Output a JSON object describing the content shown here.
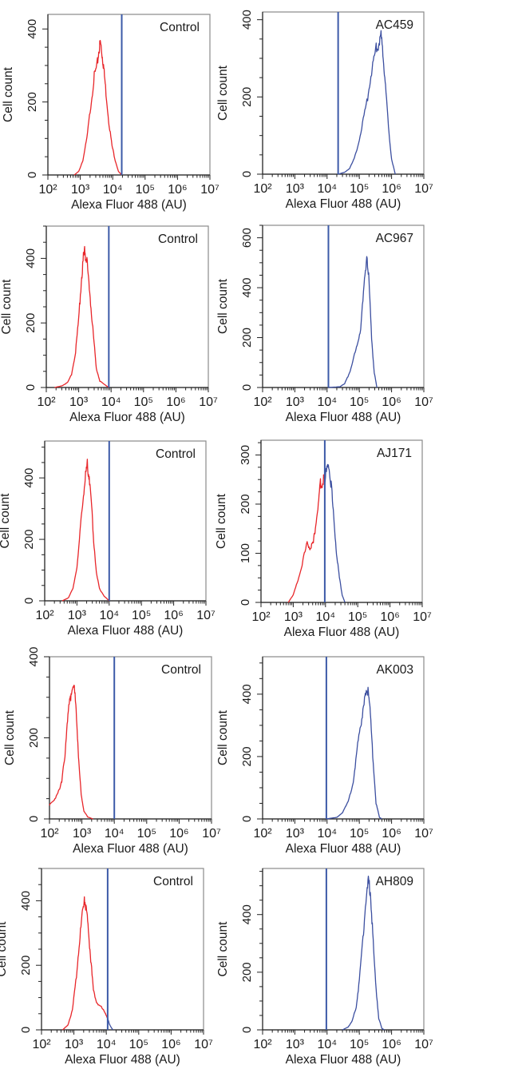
{
  "figure": {
    "description": "Flow cytometry histograms: isotype control vs. antibody staining, Alexa Fluor 488"
  },
  "colors": {
    "negative_population": "#e8262a",
    "positive_population": "#3c4fa0",
    "gate_line": "#3c5aa8",
    "frame": "#8a8a8a"
  },
  "chart_data": [
    {
      "type": "line",
      "title": "Control",
      "xlabel": "Alexa Fluor 488 (AU)",
      "ylabel": "Cell count",
      "xscale": "log",
      "xlim": [
        100,
        10000000
      ],
      "ylim": [
        0,
        440
      ],
      "x_ticks": [
        "10^2",
        "10^3",
        "10^4",
        "10^5",
        "10^6",
        "10^7"
      ],
      "y_ticks": [
        0,
        200,
        400
      ],
      "y_minor_step": 50,
      "gate": 19000,
      "series": [
        {
          "name": "below-gate",
          "color": "red",
          "peak_x": 4200,
          "peak_y": 362,
          "start_x": 650,
          "end_x": 19000,
          "points": [
            [
              650,
              0
            ],
            [
              900,
              10
            ],
            [
              1200,
              40
            ],
            [
              1600,
              100
            ],
            [
              2100,
              190
            ],
            [
              2700,
              270
            ],
            [
              3300,
              300
            ],
            [
              3800,
              345
            ],
            [
              4200,
              362
            ],
            [
              4700,
              330
            ],
            [
              5200,
              300
            ],
            [
              6000,
              240
            ],
            [
              7500,
              150
            ],
            [
              9500,
              80
            ],
            [
              12000,
              40
            ],
            [
              15000,
              10
            ],
            [
              19000,
              0
            ]
          ]
        }
      ]
    },
    {
      "type": "line",
      "title": "AC459",
      "xlabel": "Alexa Fluor 488 (AU)",
      "ylabel": "Cell count",
      "xscale": "log",
      "xlim": [
        100,
        10000000
      ],
      "ylim": [
        0,
        420
      ],
      "x_ticks": [
        "10^2",
        "10^3",
        "10^4",
        "10^5",
        "10^6",
        "10^7"
      ],
      "y_ticks": [
        0,
        200,
        400
      ],
      "y_minor_step": 50,
      "gate": 22000,
      "series": [
        {
          "name": "above-gate",
          "color": "blue",
          "peak_x": 470000,
          "peak_y": 358,
          "points": [
            [
              22000,
              0
            ],
            [
              35000,
              5
            ],
            [
              50000,
              15
            ],
            [
              70000,
              40
            ],
            [
              100000,
              90
            ],
            [
              140000,
              150
            ],
            [
              190000,
              210
            ],
            [
              250000,
              280
            ],
            [
              320000,
              320
            ],
            [
              400000,
              340
            ],
            [
              470000,
              358
            ],
            [
              550000,
              300
            ],
            [
              650000,
              230
            ],
            [
              800000,
              120
            ],
            [
              1000000,
              40
            ],
            [
              1300000,
              0
            ]
          ]
        }
      ]
    },
    {
      "type": "line",
      "title": "Control",
      "xlabel": "Alexa Fluor 488 (AU)",
      "ylabel": "Cell count",
      "xscale": "log",
      "xlim": [
        100,
        10000000
      ],
      "ylim": [
        0,
        500
      ],
      "x_ticks": [
        "10^2",
        "10^3",
        "10^4",
        "10^5",
        "10^6",
        "10^7"
      ],
      "y_ticks": [
        0,
        200,
        400
      ],
      "y_minor_step": 50,
      "gate": 8500,
      "series": [
        {
          "name": "below-gate",
          "color": "red",
          "peak_x": 1550,
          "peak_y": 420,
          "points": [
            [
              180,
              0
            ],
            [
              300,
              5
            ],
            [
              450,
              15
            ],
            [
              600,
              40
            ],
            [
              800,
              110
            ],
            [
              1000,
              210
            ],
            [
              1200,
              330
            ],
            [
              1400,
              400
            ],
            [
              1550,
              420
            ],
            [
              1750,
              395
            ],
            [
              2000,
              340
            ],
            [
              2400,
              250
            ],
            [
              2900,
              150
            ],
            [
              3500,
              60
            ],
            [
              4500,
              20
            ],
            [
              6500,
              8
            ],
            [
              8500,
              0
            ]
          ]
        }
      ]
    },
    {
      "type": "line",
      "title": "AC967",
      "xlabel": "Alexa Fluor 488 (AU)",
      "ylabel": "Cell count",
      "xscale": "log",
      "xlim": [
        100,
        10000000
      ],
      "ylim": [
        0,
        650
      ],
      "x_ticks": [
        "10^2",
        "10^3",
        "10^4",
        "10^5",
        "10^6",
        "10^7"
      ],
      "y_ticks": [
        0,
        200,
        400,
        600
      ],
      "y_minor_step": 50,
      "gate": 11000,
      "series": [
        {
          "name": "above-gate",
          "color": "blue",
          "peak_x": 170000,
          "peak_y": 540,
          "points": [
            [
              11000,
              0
            ],
            [
              25000,
              3
            ],
            [
              35000,
              15
            ],
            [
              50000,
              60
            ],
            [
              65000,
              110
            ],
            [
              85000,
              170
            ],
            [
              110000,
              240
            ],
            [
              140000,
              400
            ],
            [
              170000,
              540
            ],
            [
              200000,
              420
            ],
            [
              240000,
              200
            ],
            [
              290000,
              60
            ],
            [
              350000,
              0
            ]
          ]
        }
      ]
    },
    {
      "type": "line",
      "title": "Control",
      "xlabel": "Alexa Fluor 488 (AU)",
      "ylabel": "Cell count",
      "xscale": "log",
      "xlim": [
        100,
        10000000
      ],
      "ylim": [
        0,
        520
      ],
      "x_ticks": [
        "10^2",
        "10^3",
        "10^4",
        "10^5",
        "10^6",
        "10^7"
      ],
      "y_ticks": [
        0,
        200,
        400
      ],
      "y_minor_step": 50,
      "gate": 10000,
      "series": [
        {
          "name": "below-gate",
          "color": "red",
          "peak_x": 2100,
          "peak_y": 440,
          "points": [
            [
              350,
              0
            ],
            [
              550,
              10
            ],
            [
              750,
              40
            ],
            [
              1000,
              110
            ],
            [
              1300,
              240
            ],
            [
              1600,
              350
            ],
            [
              1900,
              420
            ],
            [
              2100,
              440
            ],
            [
              2400,
              405
            ],
            [
              2800,
              320
            ],
            [
              3300,
              200
            ],
            [
              4000,
              90
            ],
            [
              5000,
              40
            ],
            [
              7000,
              15
            ],
            [
              10000,
              0
            ]
          ]
        }
      ]
    },
    {
      "type": "line",
      "title": "AJ171",
      "xlabel": "Alexa Fluor 488 (AU)",
      "ylabel": "Cell count",
      "xscale": "log",
      "xlim": [
        100,
        10000000
      ],
      "ylim": [
        0,
        330
      ],
      "x_ticks": [
        "10^2",
        "10^3",
        "10^4",
        "10^5",
        "10^6",
        "10^7"
      ],
      "y_ticks": [
        0,
        100,
        200,
        300
      ],
      "y_minor_step": 25,
      "gate": 9500,
      "series": [
        {
          "name": "below-gate",
          "color": "red",
          "points": [
            [
              700,
              0
            ],
            [
              1000,
              15
            ],
            [
              1400,
              45
            ],
            [
              2000,
              85
            ],
            [
              2700,
              120
            ],
            [
              3300,
              110
            ],
            [
              4200,
              120
            ],
            [
              5000,
              160
            ],
            [
              6000,
              200
            ],
            [
              7000,
              245
            ],
            [
              8000,
              240
            ],
            [
              9500,
              255
            ]
          ]
        },
        {
          "name": "above-gate",
          "color": "blue",
          "peak_x": 13000,
          "peak_y": 275,
          "points": [
            [
              9500,
              255
            ],
            [
              11000,
              265
            ],
            [
              13000,
              275
            ],
            [
              15000,
              240
            ],
            [
              18000,
              170
            ],
            [
              22000,
              100
            ],
            [
              27000,
              50
            ],
            [
              33000,
              15
            ],
            [
              40000,
              0
            ]
          ]
        }
      ]
    },
    {
      "type": "line",
      "title": "Control",
      "xlabel": "Alexa Fluor 488 (AU)",
      "ylabel": "Cell count",
      "xscale": "log",
      "xlim": [
        100,
        10000000
      ],
      "ylim": [
        0,
        400
      ],
      "x_ticks": [
        "10^2",
        "10^3",
        "10^4",
        "10^5",
        "10^6",
        "10^7"
      ],
      "y_ticks": [
        0,
        200,
        400
      ],
      "y_minor_step": 50,
      "gate": 10000,
      "series": [
        {
          "name": "below-gate",
          "color": "red",
          "peak_x": 500,
          "peak_y": 335,
          "points": [
            [
              100,
              35
            ],
            [
              140,
              45
            ],
            [
              190,
              70
            ],
            [
              240,
              90
            ],
            [
              300,
              160
            ],
            [
              360,
              250
            ],
            [
              430,
              290
            ],
            [
              500,
              335
            ],
            [
              600,
              310
            ],
            [
              700,
              240
            ],
            [
              800,
              140
            ],
            [
              950,
              60
            ],
            [
              1150,
              20
            ],
            [
              1500,
              5
            ],
            [
              2200,
              0
            ]
          ]
        }
      ]
    },
    {
      "type": "line",
      "title": "AK003",
      "xlabel": "Alexa Fluor 488 (AU)",
      "ylabel": "Cell count",
      "xscale": "log",
      "xlim": [
        100,
        10000000
      ],
      "ylim": [
        0,
        520
      ],
      "x_ticks": [
        "10^2",
        "10^3",
        "10^4",
        "10^5",
        "10^6",
        "10^7"
      ],
      "y_ticks": [
        0,
        200,
        400
      ],
      "y_minor_step": 50,
      "gate": 9500,
      "series": [
        {
          "name": "above-gate",
          "color": "blue",
          "peak_x": 190000,
          "peak_y": 430,
          "points": [
            [
              9500,
              0
            ],
            [
              20000,
              5
            ],
            [
              30000,
              20
            ],
            [
              45000,
              55
            ],
            [
              65000,
              120
            ],
            [
              85000,
              220
            ],
            [
              110000,
              300
            ],
            [
              140000,
              380
            ],
            [
              170000,
              400
            ],
            [
              190000,
              430
            ],
            [
              220000,
              330
            ],
            [
              270000,
              180
            ],
            [
              330000,
              50
            ],
            [
              420000,
              5
            ],
            [
              500000,
              0
            ]
          ]
        }
      ]
    },
    {
      "type": "line",
      "title": "Control",
      "xlabel": "Alexa Fluor 488 (AU)",
      "ylabel": "Cell count",
      "xscale": "log",
      "xlim": [
        100,
        10000000
      ],
      "ylim": [
        0,
        500
      ],
      "x_ticks": [
        "10^2",
        "10^3",
        "10^4",
        "10^5",
        "10^6",
        "10^7"
      ],
      "y_ticks": [
        0,
        200,
        400
      ],
      "y_minor_step": 50,
      "gate": 11000,
      "series": [
        {
          "name": "below-gate",
          "color": "red",
          "peak_x": 2100,
          "peak_y": 415,
          "points": [
            [
              450,
              0
            ],
            [
              650,
              15
            ],
            [
              900,
              60
            ],
            [
              1200,
              170
            ],
            [
              1500,
              280
            ],
            [
              1800,
              350
            ],
            [
              2100,
              415
            ],
            [
              2400,
              370
            ],
            [
              2800,
              310
            ],
            [
              3300,
              220
            ],
            [
              4000,
              120
            ],
            [
              5000,
              85
            ],
            [
              7000,
              70
            ],
            [
              9500,
              50
            ],
            [
              11000,
              35
            ]
          ]
        },
        {
          "name": "above-gate",
          "color": "blue",
          "points": [
            [
              11000,
              35
            ],
            [
              12500,
              18
            ],
            [
              14000,
              8
            ],
            [
              16000,
              0
            ]
          ]
        }
      ]
    },
    {
      "type": "line",
      "title": "AH809",
      "xlabel": "Alexa Fluor 488 (AU)",
      "ylabel": "Cell count",
      "xscale": "log",
      "xlim": [
        100,
        10000000
      ],
      "ylim": [
        0,
        560
      ],
      "x_ticks": [
        "10^2",
        "10^3",
        "10^4",
        "10^5",
        "10^6",
        "10^7"
      ],
      "y_ticks": [
        0,
        200,
        400
      ],
      "y_minor_step": 50,
      "gate": 9500,
      "series": [
        {
          "name": "above-gate",
          "color": "blue",
          "peak_x": 190000,
          "peak_y": 510,
          "points": [
            [
              30000,
              0
            ],
            [
              45000,
              10
            ],
            [
              60000,
              30
            ],
            [
              80000,
              80
            ],
            [
              100000,
              170
            ],
            [
              130000,
              320
            ],
            [
              160000,
              450
            ],
            [
              190000,
              510
            ],
            [
              220000,
              480
            ],
            [
              260000,
              330
            ],
            [
              320000,
              160
            ],
            [
              400000,
              40
            ],
            [
              500000,
              5
            ],
            [
              600000,
              0
            ]
          ]
        }
      ]
    }
  ]
}
